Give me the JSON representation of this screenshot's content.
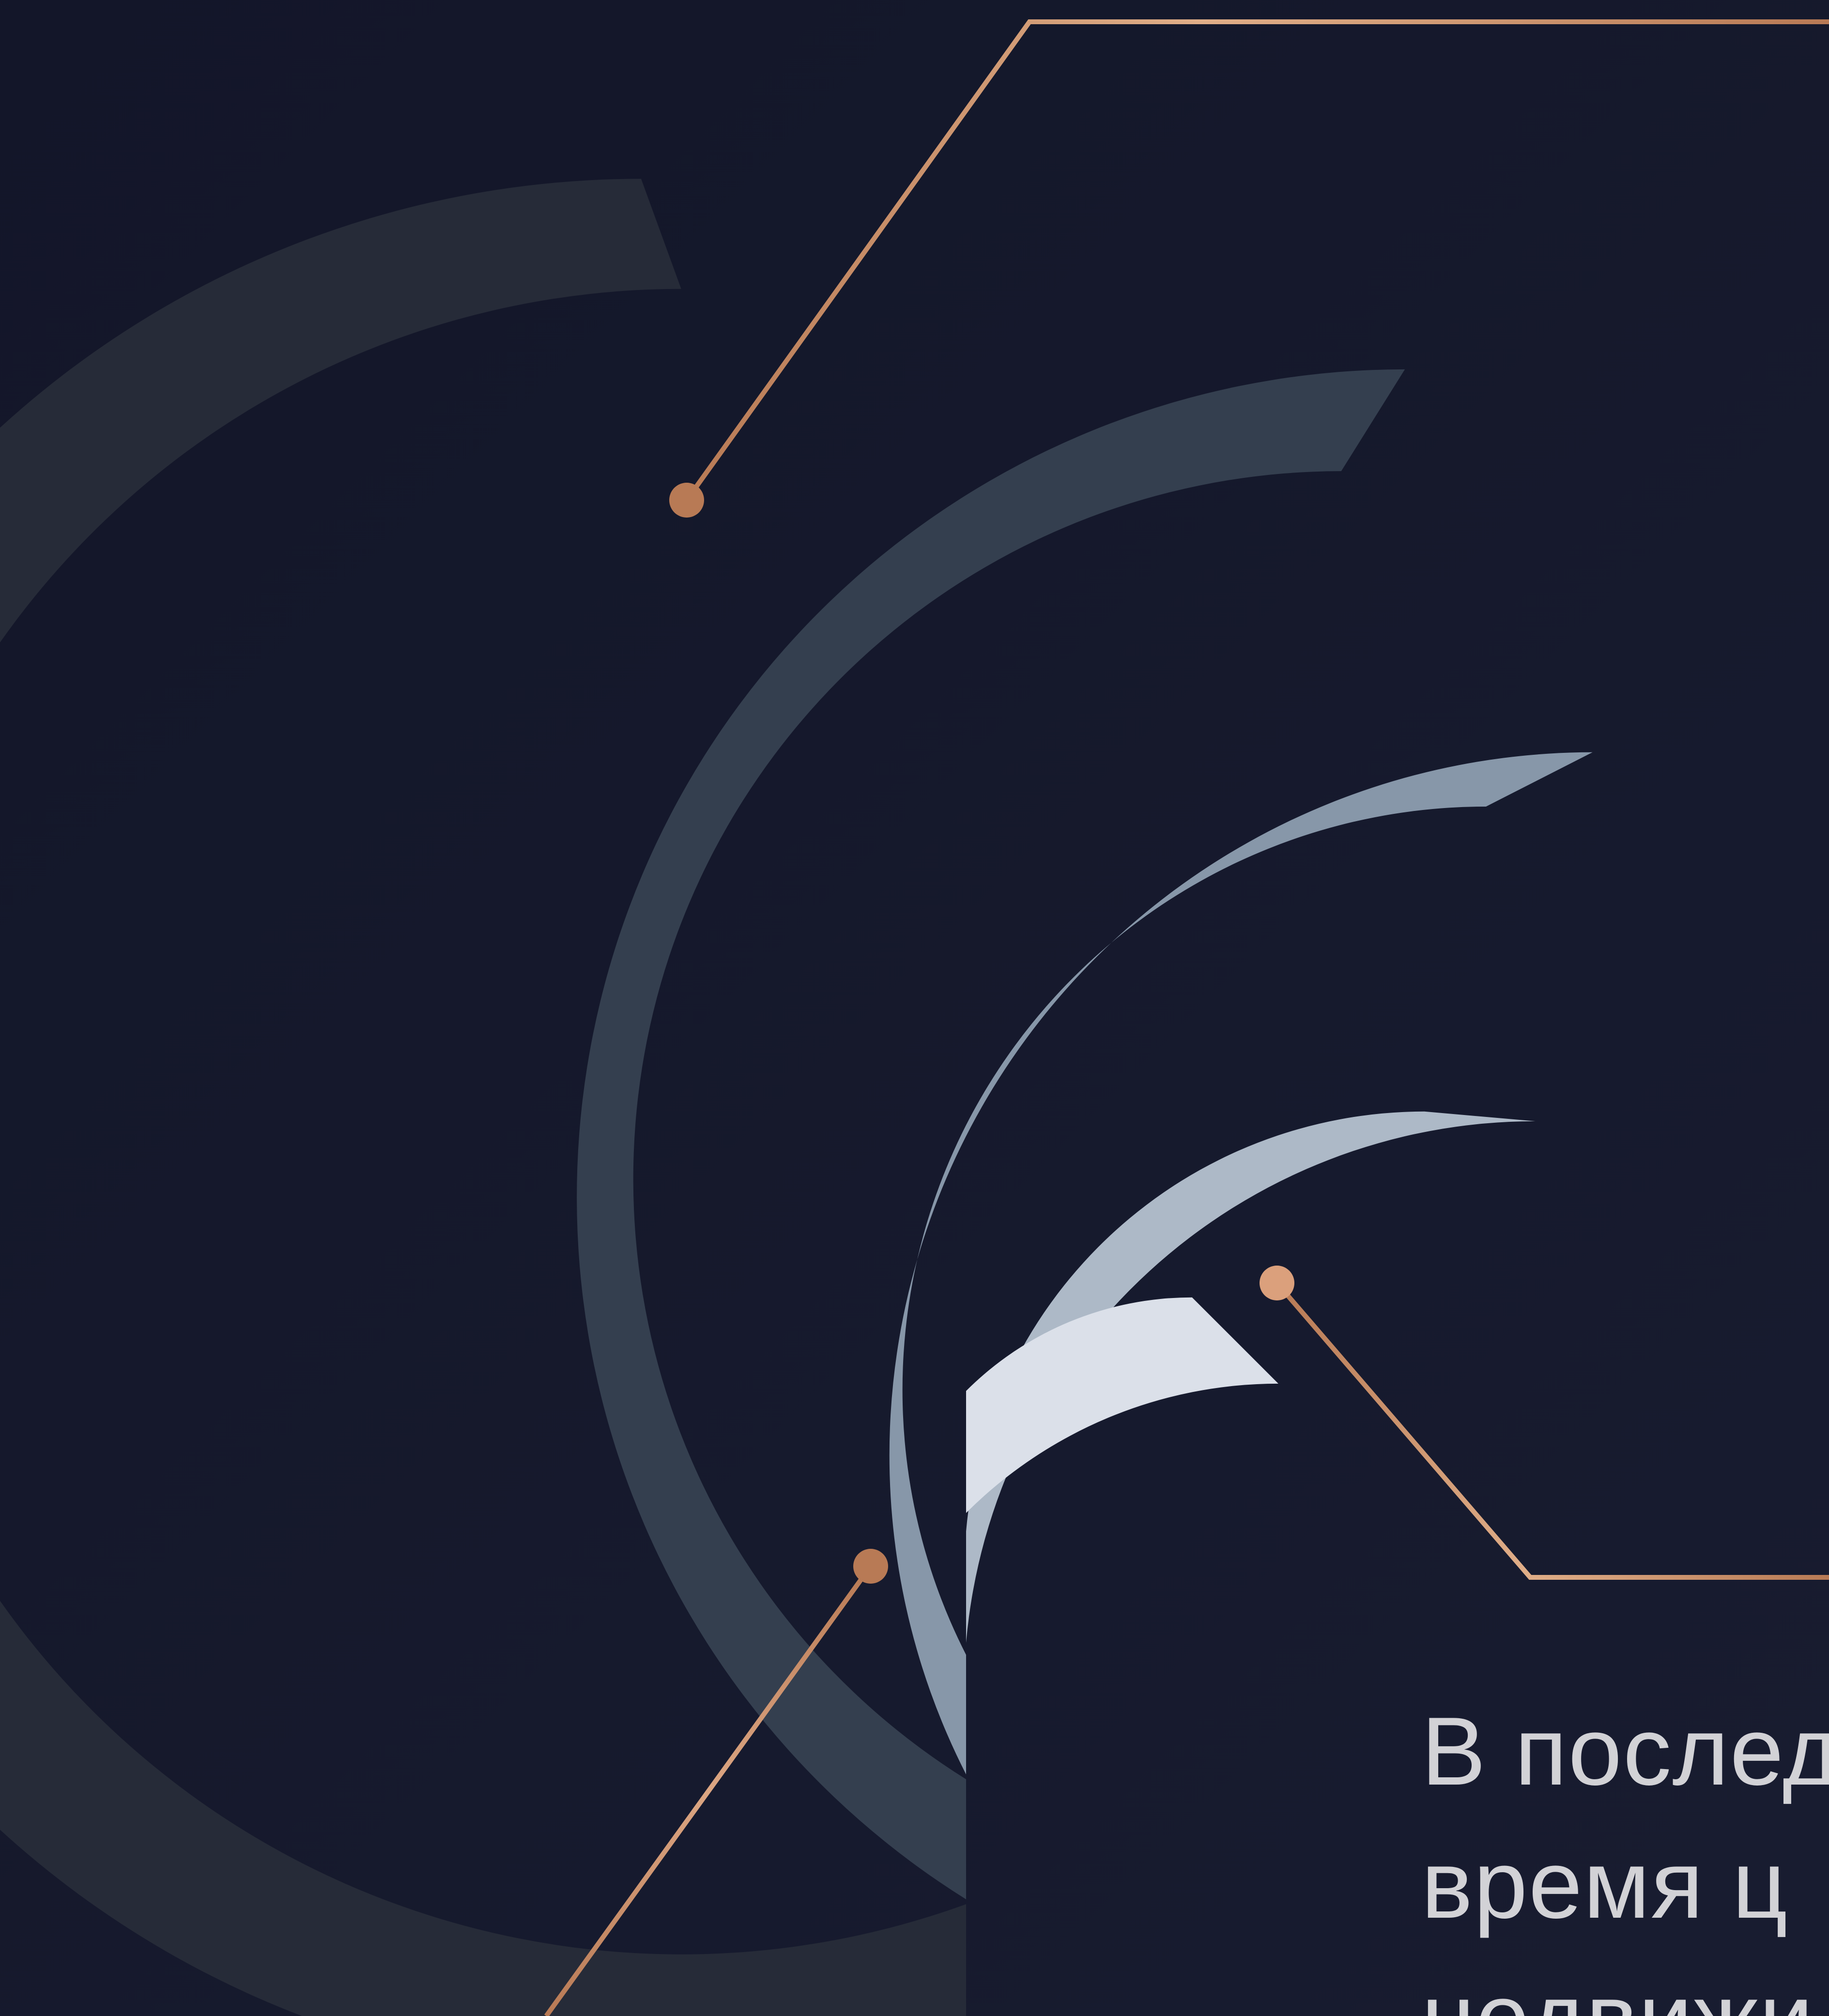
{
  "caption": {
    "lines": [
      "В послед",
      "время ц",
      "недвижи"
    ]
  },
  "colors": {
    "background": "#131629",
    "ring_outer": "#262b38",
    "ring_2": "#343f4f",
    "ring_3": "#8797a9",
    "ring_4": "#adb9c7",
    "ring_inner": "#dbe0e9",
    "accent_copper": "#b87a55",
    "accent_light": "#e2b08a"
  }
}
